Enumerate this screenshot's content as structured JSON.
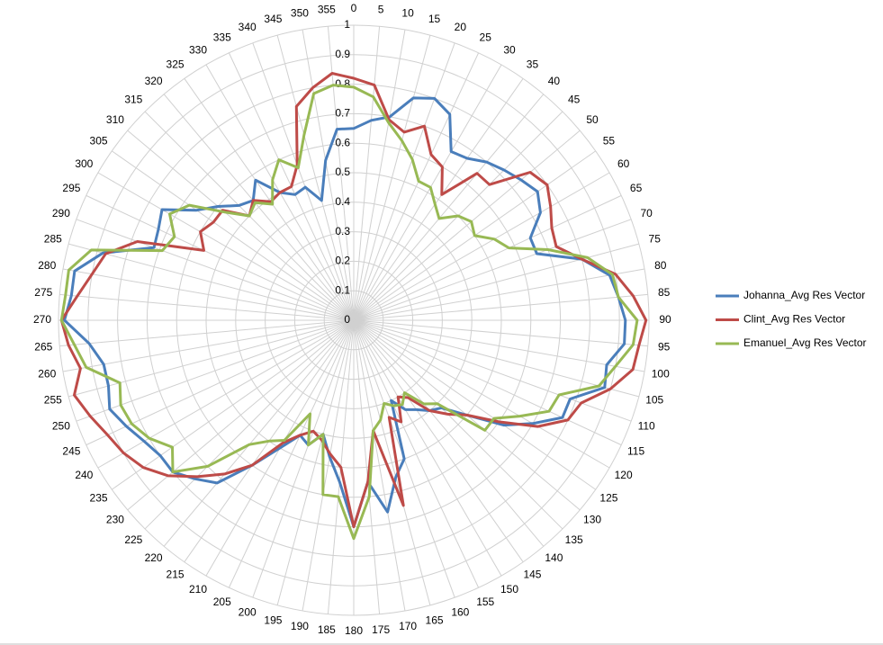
{
  "chart_data": {
    "type": "radar",
    "categories": [
      "0",
      "5",
      "10",
      "15",
      "20",
      "25",
      "30",
      "35",
      "40",
      "45",
      "50",
      "55",
      "60",
      "65",
      "70",
      "75",
      "80",
      "85",
      "90",
      "95",
      "100",
      "105",
      "110",
      "115",
      "120",
      "125",
      "130",
      "135",
      "140",
      "145",
      "150",
      "155",
      "160",
      "165",
      "170",
      "175",
      "180",
      "185",
      "190",
      "195",
      "200",
      "205",
      "210",
      "215",
      "220",
      "225",
      "230",
      "235",
      "240",
      "245",
      "250",
      "255",
      "260",
      "265",
      "270",
      "275",
      "280",
      "285",
      "290",
      "295",
      "300",
      "305",
      "310",
      "315",
      "320",
      "325",
      "330",
      "335",
      "340",
      "345",
      "350",
      "355"
    ],
    "ylim": [
      0,
      1
    ],
    "yticks": [
      0,
      0.1,
      0.2,
      0.3,
      0.4,
      0.5,
      0.6,
      0.7,
      0.8,
      0.9,
      1
    ],
    "series": [
      {
        "name": "Johanna_Avg Res Vector",
        "color": "#4a7ebb",
        "values": [
          0.65,
          0.68,
          0.7,
          0.78,
          0.8,
          0.77,
          0.66,
          0.67,
          0.7,
          0.72,
          0.74,
          0.76,
          0.73,
          0.66,
          0.66,
          0.8,
          0.88,
          0.9,
          0.92,
          0.92,
          0.87,
          0.88,
          0.78,
          0.78,
          0.7,
          0.62,
          0.5,
          0.42,
          0.4,
          0.37,
          0.35,
          0.3,
          0.5,
          0.55,
          0.66,
          0.55,
          0.7,
          0.55,
          0.47,
          0.4,
          0.45,
          0.43,
          0.5,
          0.6,
          0.72,
          0.76,
          0.8,
          0.8,
          0.82,
          0.85,
          0.88,
          0.86,
          0.86,
          0.9,
          0.98,
          0.96,
          0.96,
          0.88,
          0.72,
          0.73,
          0.75,
          0.65,
          0.6,
          0.55,
          0.53,
          0.58,
          0.5,
          0.47,
          0.48,
          0.42,
          0.55,
          0.65
        ]
      },
      {
        "name": "Clint_Avg Res Vector",
        "color": "#be4b48",
        "values": [
          0.82,
          0.8,
          0.69,
          0.66,
          0.7,
          0.62,
          0.6,
          0.52,
          0.65,
          0.65,
          0.78,
          0.8,
          0.77,
          0.74,
          0.73,
          0.8,
          0.9,
          0.95,
          0.99,
          0.97,
          0.96,
          0.9,
          0.82,
          0.8,
          0.72,
          0.6,
          0.5,
          0.45,
          0.4,
          0.32,
          0.3,
          0.38,
          0.35,
          0.65,
          0.38,
          0.55,
          0.7,
          0.5,
          0.46,
          0.42,
          0.4,
          0.43,
          0.48,
          0.6,
          0.68,
          0.75,
          0.82,
          0.87,
          0.9,
          0.92,
          0.95,
          0.98,
          0.94,
          0.97,
          0.99,
          0.94,
          0.9,
          0.87,
          0.78,
          0.56,
          0.6,
          0.58,
          0.58,
          0.5,
          0.53,
          0.49,
          0.5,
          0.5,
          0.56,
          0.75,
          0.8,
          0.84
        ]
      },
      {
        "name": "Emanuel_Avg Res Vector",
        "color": "#98b954",
        "values": [
          0.79,
          0.76,
          0.68,
          0.63,
          0.58,
          0.52,
          0.52,
          0.48,
          0.45,
          0.5,
          0.52,
          0.5,
          0.55,
          0.58,
          0.7,
          0.82,
          0.89,
          0.9,
          0.96,
          0.95,
          0.9,
          0.86,
          0.74,
          0.73,
          0.65,
          0.58,
          0.58,
          0.4,
          0.37,
          0.3,
          0.33,
          0.32,
          0.3,
          0.35,
          0.38,
          0.6,
          0.74,
          0.6,
          0.6,
          0.4,
          0.45,
          0.35,
          0.47,
          0.5,
          0.55,
          0.7,
          0.8,
          0.75,
          0.8,
          0.83,
          0.84,
          0.82,
          0.92,
          0.95,
          0.99,
          0.98,
          0.98,
          0.92,
          0.69,
          0.67,
          0.72,
          0.68,
          0.57,
          0.5,
          0.52,
          0.48,
          0.55,
          0.6,
          0.55,
          0.65,
          0.78,
          0.8
        ]
      }
    ]
  }
}
